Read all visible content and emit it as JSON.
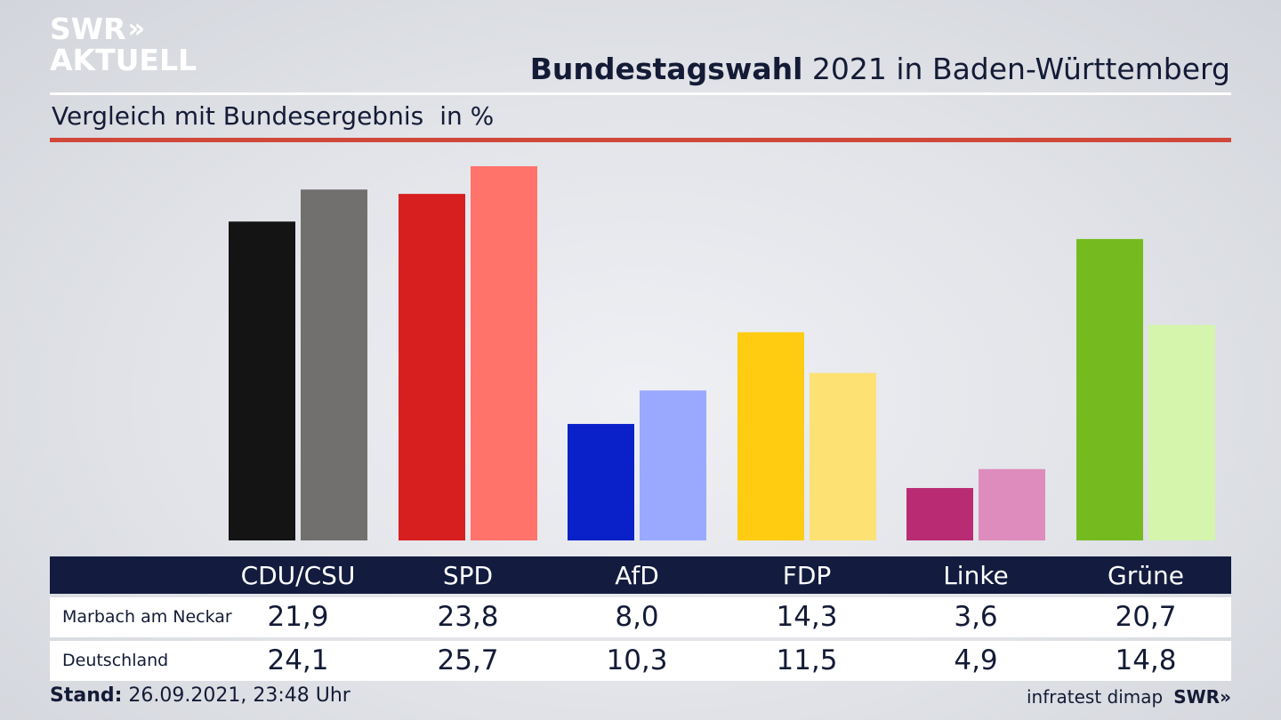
{
  "brand": {
    "logo_line1": "SWR",
    "logo_arrows": "»",
    "logo_line2": "AKTUELL"
  },
  "header": {
    "title_bold": "Bundestagswahl",
    "title_rest": " 2021 in Baden-Württemberg",
    "subtitle": "Vergleich mit Bundesergebnis",
    "unit": "in %"
  },
  "colors": {
    "accent_red_rule": "#d0483a",
    "table_header_bg": "#131c3f",
    "text": "#141b36"
  },
  "chart_data": {
    "type": "bar",
    "categories": [
      "CDU/CSU",
      "SPD",
      "AfD",
      "FDP",
      "Linke",
      "Grüne"
    ],
    "series": [
      {
        "name": "Marbach am Neckar",
        "values": [
          21.9,
          23.8,
          8.0,
          14.3,
          3.6,
          20.7
        ],
        "colors": [
          "#141414",
          "#d71f1f",
          "#0a20c8",
          "#ffcc12",
          "#b92b73",
          "#75bb1f"
        ]
      },
      {
        "name": "Deutschland",
        "values": [
          24.1,
          25.7,
          10.3,
          11.5,
          4.9,
          14.8
        ],
        "colors": [
          "#72706e",
          "#ff736b",
          "#9aa8fd",
          "#fde173",
          "#de8bbd",
          "#d5f5ac"
        ]
      }
    ],
    "ylim": [
      0,
      25.7
    ],
    "grid": false,
    "legend": "table-below"
  },
  "table": {
    "headers": [
      "CDU/CSU",
      "SPD",
      "AfD",
      "FDP",
      "Linke",
      "Grüne"
    ],
    "rows": [
      {
        "label": "Marbach am Neckar",
        "values": [
          "21,9",
          "23,8",
          "8,0",
          "14,3",
          "3,6",
          "20,7"
        ]
      },
      {
        "label": "Deutschland",
        "values": [
          "24,1",
          "25,7",
          "10,3",
          "11,5",
          "4,9",
          "14,8"
        ]
      }
    ]
  },
  "footer": {
    "stand_label": "Stand:",
    "stand_value": " 26.09.2021, 23:48 Uhr",
    "source": "infratest dimap",
    "source_logo": "SWR»"
  }
}
